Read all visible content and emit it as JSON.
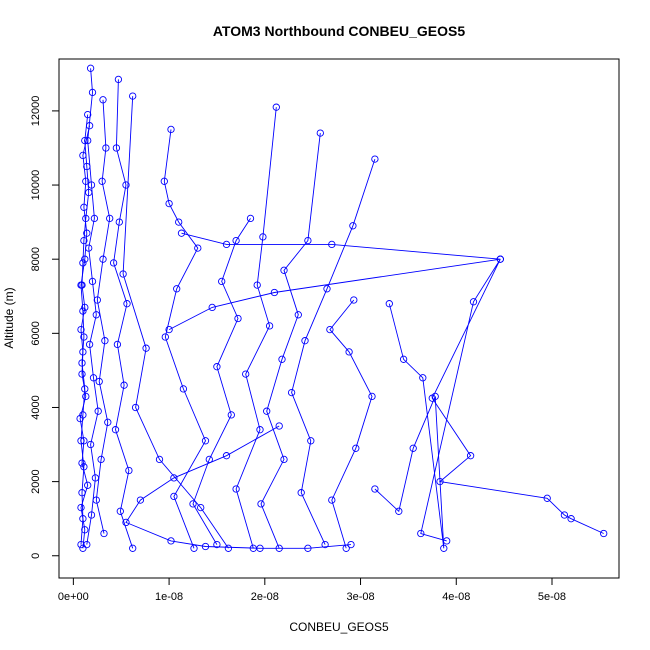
{
  "chart_data": {
    "type": "scatter",
    "title": "ATOM3 Northbound CONBEU_GEOS5",
    "xlabel": "CONBEU_GEOS5",
    "ylabel": "Altitude (m)",
    "xlim": [
      -1.5e-09,
      5.7e-08
    ],
    "ylim": [
      -600,
      13400
    ],
    "x_ticks": [
      0,
      1e-08,
      2e-08,
      3e-08,
      4e-08,
      5e-08
    ],
    "x_tick_labels": [
      "0e+00",
      "1e-08",
      "2e-08",
      "3e-08",
      "4e-08",
      "5e-08"
    ],
    "y_ticks": [
      0,
      2000,
      4000,
      6000,
      8000,
      10000,
      12000
    ],
    "y_tick_labels": [
      "0",
      "2000",
      "4000",
      "6000",
      "8000",
      "10000",
      "12000"
    ],
    "grid": false,
    "marker": "open-circle",
    "color": "#0000ff",
    "series": [
      {
        "x": [
          1e-09,
          1.2e-09,
          8e-10,
          1.5e-09,
          9e-10,
          1.1e-09,
          7e-10,
          1.3e-09,
          9e-10,
          1e-09,
          8e-10,
          1.2e-09,
          9e-10,
          1e-09,
          1.1e-09,
          1.3e-09,
          1.6e-09,
          1.4e-09,
          1.2e-09,
          1.5e-09
        ],
        "y": [
          200,
          700,
          1300,
          1900,
          2500,
          3100,
          3700,
          4300,
          4900,
          5500,
          6100,
          6700,
          7300,
          7900,
          8500,
          9100,
          9800,
          10500,
          11200,
          11900
        ]
      },
      {
        "x": [
          8e-10,
          1e-09,
          9e-10,
          1.1e-09,
          8e-10,
          1e-09,
          1.2e-09,
          9e-10,
          1.1e-09,
          1e-09,
          8e-10,
          1.2e-09,
          1.4e-09,
          1.1e-09,
          1.3e-09,
          1e-09,
          1.7e-09
        ],
        "y": [
          300,
          1000,
          1700,
          2400,
          3100,
          3800,
          4500,
          5200,
          5900,
          6600,
          7300,
          8000,
          8700,
          9400,
          10100,
          10800,
          11600
        ]
      },
      {
        "x": [
          1.4e-09,
          1.9e-09,
          2.3e-09,
          1.8e-09,
          2.6e-09,
          2.1e-09,
          1.7e-09,
          2.4e-09,
          2e-09,
          1.6e-09,
          2.2e-09,
          1.9e-09,
          1.5e-09,
          2e-09,
          1.8e-09
        ],
        "y": [
          300,
          1100,
          2100,
          3000,
          3900,
          4800,
          5700,
          6500,
          7400,
          8300,
          9100,
          10000,
          11200,
          12500,
          13150
        ]
      },
      {
        "x": [
          3.2e-09,
          2.4e-09,
          2.9e-09,
          3.6e-09,
          2.7e-09,
          3.3e-09,
          2.5e-09,
          3.1e-09,
          3.8e-09,
          3e-09,
          3.4e-09,
          3.1e-09
        ],
        "y": [
          600,
          1500,
          2600,
          3600,
          4700,
          5800,
          6900,
          8000,
          9100,
          10100,
          11000,
          12300
        ]
      },
      {
        "x": [
          6.2e-09,
          4.9e-09,
          5.8e-09,
          4.4e-09,
          5.3e-09,
          4.6e-09,
          5.6e-09,
          4.2e-09,
          4.8e-09,
          5.5e-09,
          4.5e-09,
          4.7e-09
        ],
        "y": [
          200,
          1200,
          2300,
          3400,
          4600,
          5700,
          6800,
          7900,
          9000,
          10000,
          11000,
          12850
        ]
      },
      {
        "x": [
          1.62e-08,
          1.33e-08,
          9e-09,
          6.5e-09,
          7.6e-09,
          5.2e-09,
          6.2e-09
        ],
        "y": [
          200,
          1300,
          2600,
          4000,
          5600,
          7600,
          12400
        ]
      },
      {
        "x": [
          1.26e-08,
          1.05e-08,
          1.38e-08,
          1.15e-08,
          9.6e-09,
          1.08e-08,
          1.3e-08,
          1.1e-08,
          1e-08,
          9.5e-09,
          1.02e-08
        ],
        "y": [
          200,
          1600,
          3100,
          4500,
          5900,
          7200,
          8300,
          9000,
          9500,
          10100,
          11500
        ]
      },
      {
        "x": [
          1.5e-08,
          1.25e-08,
          1.42e-08,
          1.65e-08,
          1.5e-08,
          1.72e-08,
          1.55e-08,
          1.7e-08,
          1.85e-08
        ],
        "y": [
          300,
          1400,
          2600,
          3800,
          5100,
          6400,
          7400,
          8500,
          9100
        ]
      },
      {
        "x": [
          1.88e-08,
          1.7e-08,
          1.95e-08,
          1.8e-08,
          2.05e-08,
          1.92e-08,
          1.98e-08,
          2.12e-08
        ],
        "y": [
          200,
          1800,
          3400,
          4900,
          6200,
          7300,
          8600,
          12100
        ]
      },
      {
        "x": [
          2.15e-08,
          1.96e-08,
          2.2e-08,
          2.02e-08,
          2.18e-08,
          2.35e-08,
          2.2e-08,
          2.45e-08,
          2.58e-08
        ],
        "y": [
          200,
          1400,
          2600,
          3900,
          5300,
          6500,
          7700,
          8500,
          11400
        ]
      },
      {
        "x": [
          2.63e-08,
          2.38e-08,
          2.48e-08,
          2.28e-08,
          2.42e-08,
          2.65e-08,
          2.92e-08,
          3.15e-08
        ],
        "y": [
          300,
          1700,
          3100,
          4400,
          5800,
          7200,
          8900,
          10700
        ]
      },
      {
        "x": [
          2.85e-08,
          2.7e-08,
          2.95e-08,
          3.12e-08,
          2.88e-08,
          2.68e-08,
          2.93e-08
        ],
        "y": [
          200,
          1500,
          2900,
          4300,
          5500,
          6100,
          6900
        ]
      },
      {
        "x": [
          3.15e-08,
          3.4e-08,
          3.55e-08,
          3.78e-08,
          3.87e-08,
          3.65e-08,
          3.45e-08,
          3.3e-08
        ],
        "y": [
          1800,
          1200,
          2900,
          4300,
          200,
          4800,
          5300,
          6800
        ]
      },
      {
        "x": [
          5.54e-08,
          5.2e-08,
          5.13e-08,
          4.95e-08,
          3.83e-08,
          4.15e-08,
          3.75e-08,
          4.46e-08,
          4.18e-08,
          3.63e-08,
          3.9e-08
        ],
        "y": [
          600,
          1000,
          1100,
          1550,
          2000,
          2700,
          4250,
          8000,
          6850,
          600,
          400
        ]
      },
      {
        "x": [
          1.13e-08,
          1.6e-08,
          2.7e-08,
          4.46e-08,
          2.1e-08,
          1.45e-08,
          1e-08
        ],
        "y": [
          8700,
          8400,
          8400,
          8000,
          7100,
          6700,
          6100
        ]
      },
      {
        "x": [
          2.15e-08,
          1.6e-08,
          1.05e-08,
          7e-09,
          5.5e-09,
          1.02e-08,
          1.38e-08,
          1.95e-08,
          2.45e-08,
          2.9e-08
        ],
        "y": [
          3500,
          2700,
          2100,
          1500,
          900,
          400,
          250,
          200,
          200,
          300
        ]
      }
    ]
  }
}
